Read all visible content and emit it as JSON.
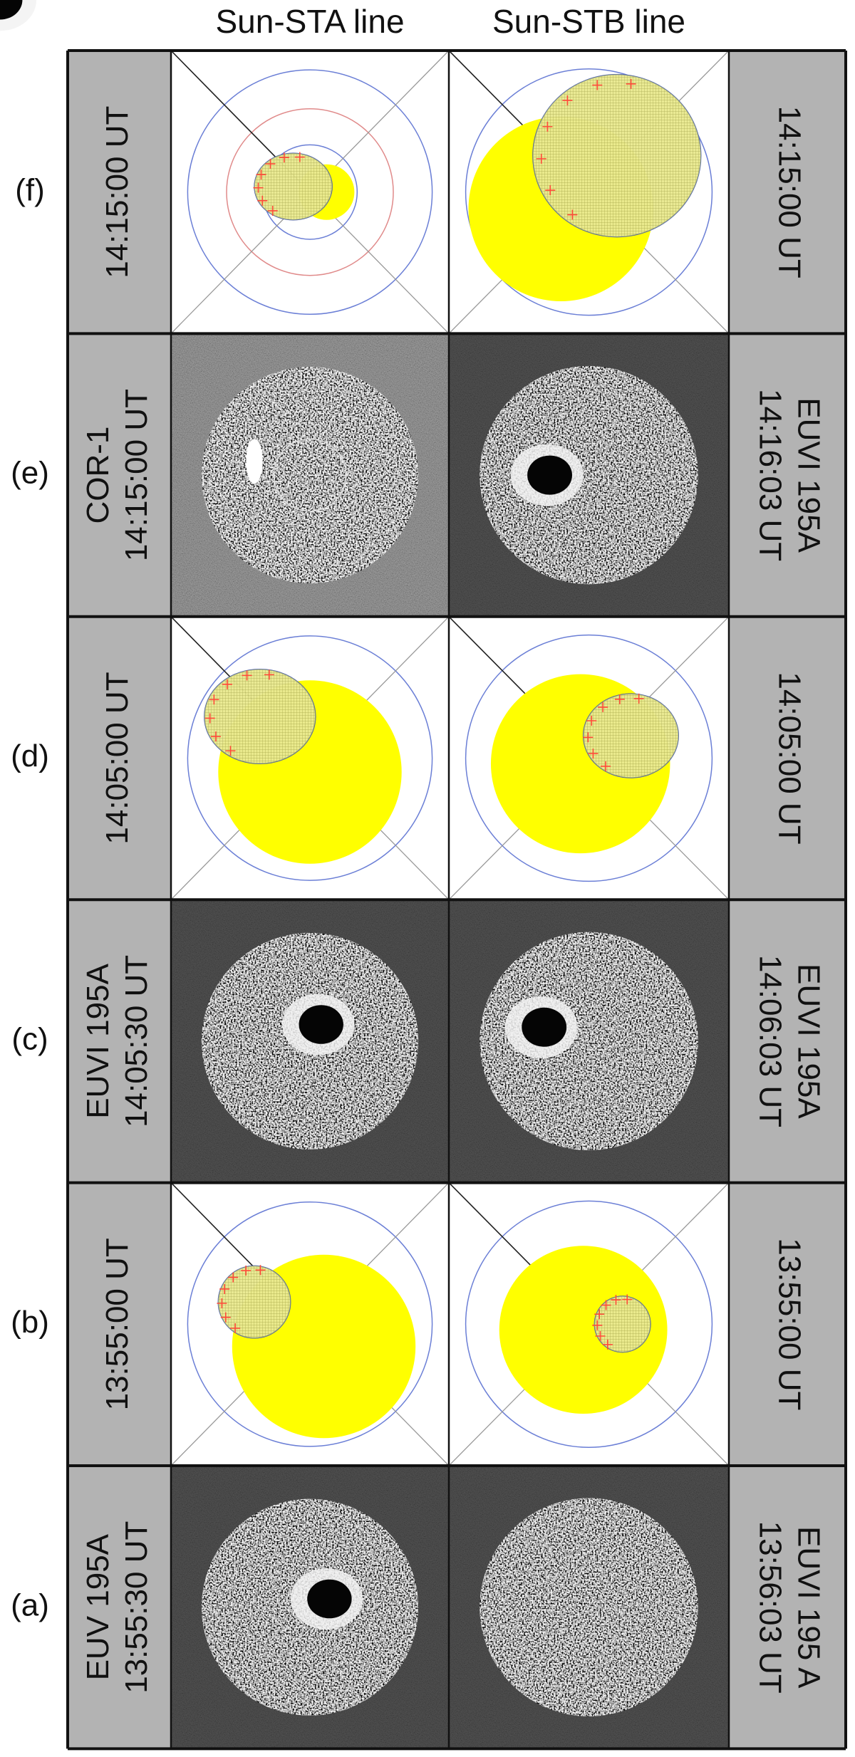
{
  "header": {
    "columns": [
      "Sun-STA line",
      "Sun-STB line"
    ]
  },
  "rows": [
    {
      "label": "(f)",
      "left": [
        "14:15:00 UT"
      ],
      "right": [
        "14:15:00 UT"
      ]
    },
    {
      "label": "(e)",
      "left": [
        "COR-1",
        "14:15:00 UT"
      ],
      "right": [
        "EUVI 195A",
        "14:16:03 UT"
      ]
    },
    {
      "label": "(d)",
      "left": [
        "14:05:00 UT"
      ],
      "right": [
        "14:05:00 UT"
      ]
    },
    {
      "label": "(c)",
      "left": [
        "EUVI 195A",
        "14:05:30 UT"
      ],
      "right": [
        "EUVI 195A",
        "14:06:03 UT"
      ]
    },
    {
      "label": "(b)",
      "left": [
        "13:55:00 UT"
      ],
      "right": [
        "13:55:00 UT"
      ]
    },
    {
      "label": "(a)",
      "left": [
        "EUV 195A",
        "13:55:30 UT"
      ],
      "right": [
        "EUVI 195 A",
        "13:56:03 UT"
      ]
    }
  ]
}
